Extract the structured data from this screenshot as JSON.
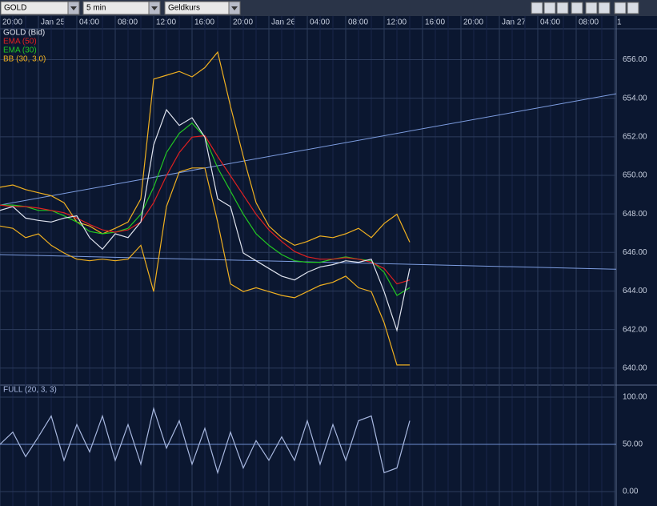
{
  "toolbar": {
    "symbol": "GOLD",
    "interval": "5 min",
    "quote": "Geldkurs"
  },
  "chart_data": [
    {
      "type": "line",
      "categories": [
        "20:00",
        null,
        null,
        "Jan 25",
        null,
        null,
        "04:00",
        null,
        null,
        "08:00",
        null,
        null,
        "12:00",
        null,
        null,
        "16:00",
        null,
        null,
        "20:00",
        null,
        null,
        "Jan 26",
        null,
        null,
        "04:00",
        null,
        null,
        "08:00",
        null,
        null,
        "12:00",
        null,
        null,
        "16:00",
        null,
        null,
        "20:00",
        null,
        null,
        "Jan 27",
        null,
        null,
        "04:00",
        null,
        null,
        "08:00",
        null,
        null,
        "1"
      ],
      "ylim": [
        639.16,
        657.6
      ],
      "yticks": [
        {
          "value": 640,
          "label": "640.00"
        },
        {
          "value": 642,
          "label": "642.00"
        },
        {
          "value": 644,
          "label": "644.00"
        },
        {
          "value": 646,
          "label": "646.00"
        },
        {
          "value": 648,
          "label": "648.00"
        },
        {
          "value": 650,
          "label": "650.00"
        },
        {
          "value": 652,
          "label": "652.00"
        },
        {
          "value": 654,
          "label": "654.00"
        },
        {
          "value": 656,
          "label": "656.00"
        }
      ],
      "grid": true,
      "series": [
        {
          "name": "GOLD (Bid)",
          "color": "#dfe3ee",
          "values": [
            648.18,
            648.38,
            647.78,
            647.66,
            647.58,
            647.78,
            647.9,
            646.77,
            646.17,
            646.97,
            646.77,
            647.58,
            651.58,
            653.4,
            652.59,
            652.99,
            651.98,
            648.78,
            648.38,
            645.97,
            645.57,
            645.17,
            644.77,
            644.57,
            644.97,
            645.25,
            645.37,
            645.57,
            645.49,
            645.65,
            643.97,
            641.96,
            645.17,
            null,
            null,
            null,
            null,
            null,
            null,
            null,
            null,
            null,
            null,
            null,
            null,
            null,
            null,
            null,
            null
          ]
        },
        {
          "name": "EMA (50)",
          "color": "#e02020",
          "values": [
            648.46,
            648.38,
            648.38,
            648.3,
            648.18,
            648.06,
            647.78,
            647.45,
            647.17,
            647.05,
            647.17,
            647.58,
            648.58,
            649.98,
            651.18,
            651.98,
            652.06,
            650.98,
            649.98,
            648.98,
            647.98,
            647.17,
            646.57,
            646.05,
            645.77,
            645.65,
            645.65,
            645.73,
            645.65,
            645.49,
            645.17,
            644.37,
            644.57,
            null,
            null,
            null,
            null,
            null,
            null,
            null,
            null,
            null,
            null,
            null,
            null,
            null,
            null,
            null,
            null
          ]
        },
        {
          "name": "EMA (30)",
          "color": "#22c822",
          "values": [
            648.46,
            648.46,
            648.38,
            648.18,
            648.18,
            647.9,
            647.58,
            647.09,
            646.97,
            647.05,
            647.25,
            647.98,
            649.38,
            651.18,
            652.18,
            652.71,
            651.98,
            650.38,
            649.18,
            647.98,
            646.97,
            646.37,
            645.89,
            645.57,
            645.49,
            645.49,
            645.65,
            645.77,
            645.65,
            645.57,
            644.97,
            643.77,
            644.17,
            null,
            null,
            null,
            null,
            null,
            null,
            null,
            null,
            null,
            null,
            null,
            null,
            null,
            null,
            null,
            null
          ]
        },
        {
          "name": "BB (30, 3.0)",
          "color": "#f0b020",
          "values": [
            649.38,
            649.5,
            649.26,
            649.1,
            648.94,
            648.58,
            647.58,
            647.37,
            646.97,
            647.25,
            647.58,
            648.78,
            654.99,
            655.19,
            655.39,
            655.11,
            655.59,
            656.39,
            653.59,
            650.98,
            648.58,
            647.37,
            646.77,
            646.37,
            646.57,
            646.85,
            646.77,
            646.97,
            647.25,
            646.77,
            647.5,
            647.98,
            646.53,
            null,
            null,
            null,
            null,
            null,
            null,
            null,
            null,
            null,
            null,
            null,
            null,
            null,
            null,
            null,
            null
          ],
          "lower": [
            647.37,
            647.25,
            646.77,
            646.97,
            646.37,
            645.97,
            645.65,
            645.57,
            645.65,
            645.57,
            645.65,
            646.37,
            643.97,
            648.38,
            650.18,
            650.38,
            650.38,
            647.58,
            644.37,
            643.97,
            644.17,
            643.97,
            643.77,
            643.65,
            643.97,
            644.29,
            644.45,
            644.77,
            644.17,
            643.97,
            642.36,
            640.16,
            640.16,
            null,
            null,
            null,
            null,
            null,
            null,
            null,
            null,
            null,
            null,
            null,
            null,
            null,
            null,
            null,
            null
          ]
        }
      ],
      "trendlines": [
        {
          "color": "#7d9de0",
          "values": [
            648.46,
            654.23
          ]
        },
        {
          "color": "#7d9de0",
          "values": [
            645.89,
            645.13
          ]
        }
      ]
    },
    {
      "type": "line",
      "ylim": [
        -15.3,
        111.9
      ],
      "yticks": [
        {
          "value": 0,
          "label": "0.00"
        },
        {
          "value": 50,
          "label": "50.00"
        },
        {
          "value": 100,
          "label": "100.00"
        }
      ],
      "reference_line": 50,
      "series": [
        {
          "name": "FULL (20, 3, 3)",
          "color": "#a8b8e0",
          "values": [
            50,
            63,
            37,
            58,
            80,
            33,
            71,
            42,
            80,
            33,
            71,
            29,
            88,
            46,
            75,
            29,
            67,
            20,
            63,
            25,
            54,
            33,
            58,
            33,
            75,
            29,
            71,
            33,
            75,
            80,
            20,
            25,
            75
          ]
        }
      ]
    }
  ]
}
